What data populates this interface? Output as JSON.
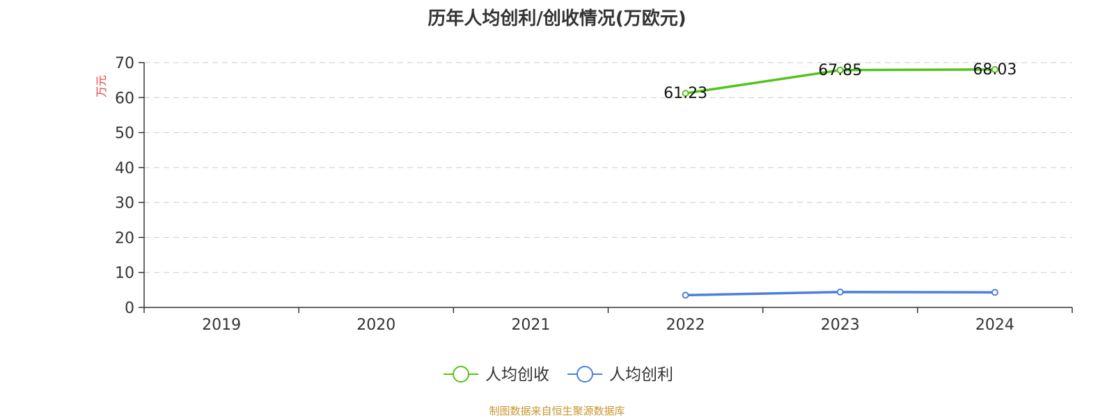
{
  "title": "历年人均创利/创收情况(万欧元)",
  "footer": "制图数据来自恒生聚源数据库",
  "colors": {
    "revenue": "#52c41a",
    "profit": "#4a7fdc",
    "ylabel": "#e8383d"
  },
  "chart_data": {
    "type": "line",
    "title": "历年人均创利/创收情况(万欧元)",
    "xlabel": "",
    "ylabel": "万元",
    "categories": [
      "2019",
      "2020",
      "2021",
      "2022",
      "2023",
      "2024"
    ],
    "ylim": [
      0,
      70
    ],
    "yticks": [
      0,
      10,
      20,
      30,
      40,
      50,
      60,
      70
    ],
    "grid": true,
    "legend_position": "bottom",
    "series": [
      {
        "name": "人均创收",
        "values": [
          null,
          null,
          null,
          61.23,
          67.85,
          68.03
        ],
        "labels": [
          null,
          null,
          null,
          "61.23",
          "67.85",
          "68.03"
        ]
      },
      {
        "name": "人均创利",
        "values": [
          null,
          null,
          null,
          3.5,
          4.4,
          4.3
        ],
        "labels": [
          null,
          null,
          null,
          null,
          null,
          null
        ]
      }
    ]
  }
}
